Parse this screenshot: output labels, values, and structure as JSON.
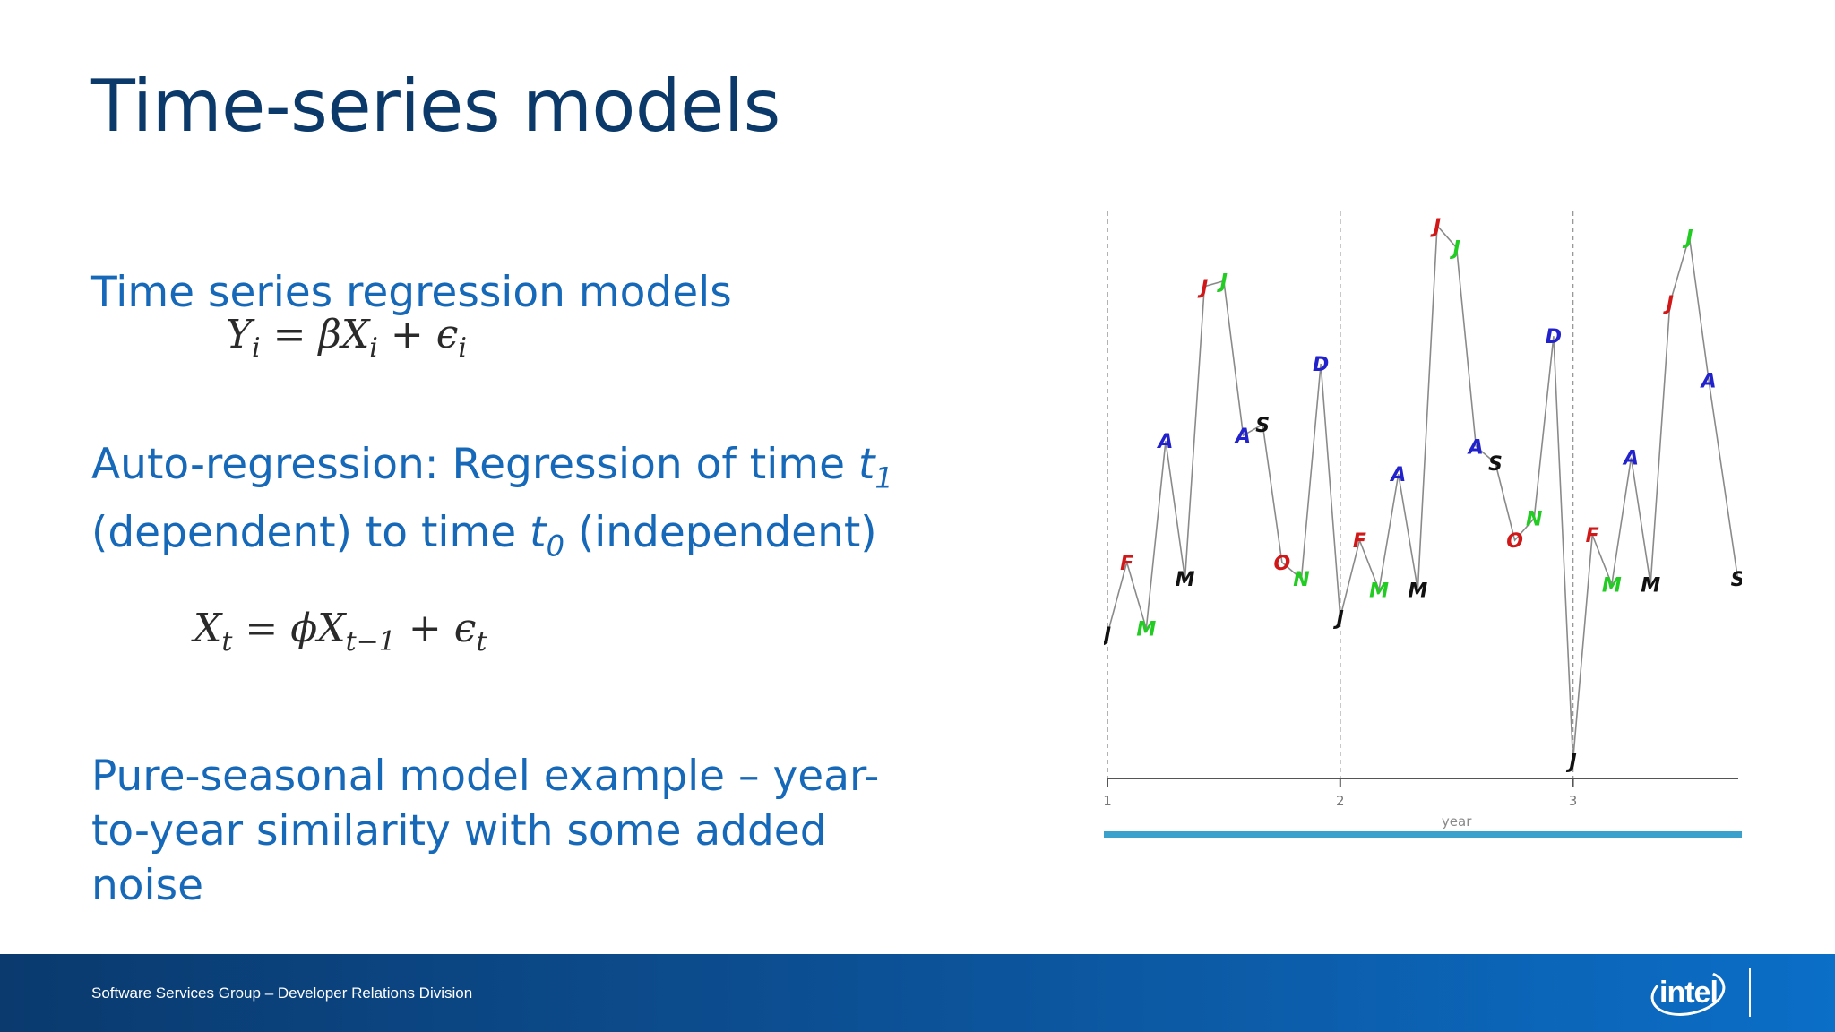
{
  "slide": {
    "title": "Time-series models",
    "bullet1": "Time series regression models",
    "eq1": {
      "lhs": "Y",
      "lhs_sub": "i",
      "eqsign": " = ",
      "coef": "β",
      "var": "X",
      "var_sub": "i",
      "plus": " + ",
      "err": "ϵ",
      "err_sub": "i"
    },
    "bullet2": {
      "part1": "Auto-regression: Regression of time ",
      "t": "t",
      "t_sub1": "1",
      "part2": "(dependent) to time ",
      "t_sub0": "0",
      "part3": " (independent)"
    },
    "eq2": {
      "lhs": "X",
      "lhs_sub": "t",
      "eqsign": " = ",
      "coef": "ϕ",
      "var": "X",
      "var_sub": "t−1",
      "plus": " + ",
      "err": "ϵ",
      "err_sub": "t"
    },
    "bullet3": "Pure-seasonal model example – year-to-year similarity with some added noise"
  },
  "footer": {
    "text": "Software Services Group – Developer Relations Division",
    "logo": "intel"
  },
  "chart_data": {
    "type": "line",
    "xlabel": "year",
    "xticks": [
      1,
      2,
      3
    ],
    "xlim": [
      1,
      3.71
    ],
    "ylim": [
      0,
      1
    ],
    "grid": "vertical dashed lines at year boundaries",
    "marker_colors": {
      "J": "#d01818",
      "F": "#d01818",
      "M1": "#22cc22",
      "A1": "#2222cc",
      "M2": "#111111",
      "J2": "#d01818",
      "J3": "#22cc22",
      "A2": "#2222cc",
      "S": "#111111",
      "O": "#d01818",
      "N": "#22cc22",
      "D": "#2222cc",
      "Jan": "#111111"
    },
    "points": [
      {
        "x": 1.0,
        "y": 0.26,
        "label": "J",
        "color": "#111111"
      },
      {
        "x": 1.0833,
        "y": 0.39,
        "label": "F",
        "color": "#d01818"
      },
      {
        "x": 1.1667,
        "y": 0.27,
        "label": "M",
        "color": "#22cc22"
      },
      {
        "x": 1.25,
        "y": 0.61,
        "label": "A",
        "color": "#2222cc"
      },
      {
        "x": 1.3333,
        "y": 0.36,
        "label": "M",
        "color": "#111111"
      },
      {
        "x": 1.4167,
        "y": 0.89,
        "label": "J",
        "color": "#d01818"
      },
      {
        "x": 1.5,
        "y": 0.9,
        "label": "J",
        "color": "#22cc22"
      },
      {
        "x": 1.5833,
        "y": 0.62,
        "label": "A",
        "color": "#2222cc"
      },
      {
        "x": 1.6667,
        "y": 0.64,
        "label": "S",
        "color": "#111111"
      },
      {
        "x": 1.75,
        "y": 0.39,
        "label": "O",
        "color": "#d01818"
      },
      {
        "x": 1.8333,
        "y": 0.36,
        "label": "N",
        "color": "#22cc22"
      },
      {
        "x": 1.9167,
        "y": 0.75,
        "label": "D",
        "color": "#2222cc"
      },
      {
        "x": 2.0,
        "y": 0.29,
        "label": "J",
        "color": "#111111"
      },
      {
        "x": 2.0833,
        "y": 0.43,
        "label": "F",
        "color": "#d01818"
      },
      {
        "x": 2.1667,
        "y": 0.34,
        "label": "M",
        "color": "#22cc22"
      },
      {
        "x": 2.25,
        "y": 0.55,
        "label": "A",
        "color": "#2222cc"
      },
      {
        "x": 2.3333,
        "y": 0.34,
        "label": "M",
        "color": "#111111"
      },
      {
        "x": 2.4167,
        "y": 1.0,
        "label": "J",
        "color": "#d01818"
      },
      {
        "x": 2.5,
        "y": 0.96,
        "label": "J",
        "color": "#22cc22"
      },
      {
        "x": 2.5833,
        "y": 0.6,
        "label": "A",
        "color": "#2222cc"
      },
      {
        "x": 2.6667,
        "y": 0.57,
        "label": "S",
        "color": "#111111"
      },
      {
        "x": 2.75,
        "y": 0.43,
        "label": "O",
        "color": "#d01818"
      },
      {
        "x": 2.8333,
        "y": 0.47,
        "label": "N",
        "color": "#22cc22"
      },
      {
        "x": 2.9167,
        "y": 0.8,
        "label": "D",
        "color": "#2222cc"
      },
      {
        "x": 3.0,
        "y": 0.03,
        "label": "J",
        "color": "#111111"
      },
      {
        "x": 3.0833,
        "y": 0.44,
        "label": "F",
        "color": "#d01818"
      },
      {
        "x": 3.1667,
        "y": 0.35,
        "label": "M",
        "color": "#22cc22"
      },
      {
        "x": 3.25,
        "y": 0.58,
        "label": "A",
        "color": "#2222cc"
      },
      {
        "x": 3.3333,
        "y": 0.35,
        "label": "M",
        "color": "#111111"
      },
      {
        "x": 3.4167,
        "y": 0.86,
        "label": "J",
        "color": "#d01818"
      },
      {
        "x": 3.5,
        "y": 0.98,
        "label": "J",
        "color": "#22cc22"
      },
      {
        "x": 3.5833,
        "y": 0.72,
        "label": "A",
        "color": "#2222cc"
      },
      {
        "x": 3.7083,
        "y": 0.36,
        "label": "S",
        "color": "#111111"
      }
    ]
  }
}
